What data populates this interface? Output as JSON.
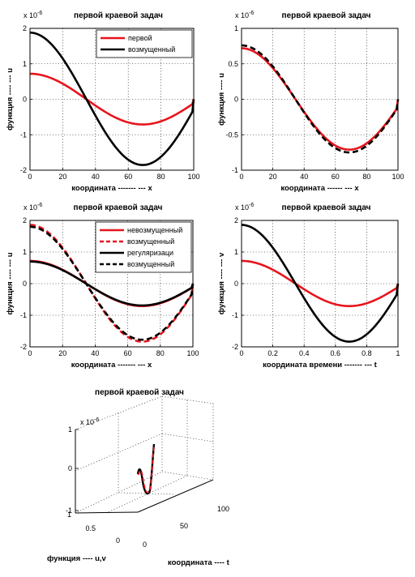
{
  "chart_data": [
    {
      "type": "line",
      "title": "первой краевой задач",
      "xlabel": "координата ------- --- x",
      "ylabel": "функция ---- --- u",
      "exponent": "x 10",
      "exponent_power": "-6",
      "xlim": [
        0,
        100
      ],
      "ylim": [
        -2,
        2
      ],
      "xticks": [
        "0",
        "20",
        "40",
        "60",
        "80",
        "100"
      ],
      "yticks": [
        "-2",
        "-1",
        "0",
        "1",
        "2"
      ],
      "grid": true,
      "legend_position": "top-right",
      "series": [
        {
          "name": "первой",
          "color": "#e8141c",
          "dash": "solid",
          "amplitude": 0.72
        },
        {
          "name": "возмущенный",
          "color": "#000000",
          "dash": "solid",
          "amplitude": 1.88
        }
      ]
    },
    {
      "type": "line",
      "title": "первой краевой задач",
      "xlabel": "координата ------ --- x",
      "ylabel": "функция ---- u",
      "exponent": "x 10",
      "exponent_power": "-6",
      "xlim": [
        0,
        100
      ],
      "ylim": [
        -1,
        1
      ],
      "xticks": [
        "0",
        "20",
        "40",
        "60",
        "80",
        "100"
      ],
      "yticks": [
        "-1",
        "-0.5",
        "0",
        "0.5",
        "1"
      ],
      "grid": true,
      "series": [
        {
          "color": "#e8141c",
          "dash": "solid",
          "amplitude": 0.72
        },
        {
          "color": "#000000",
          "dash": "dashed",
          "amplitude": 0.76
        }
      ]
    },
    {
      "type": "line",
      "title": "первой краевой задач",
      "xlabel": "координата ------- --- x",
      "ylabel": "функция ---- --- u",
      "exponent": "x 10",
      "exponent_power": "-6",
      "xlim": [
        0,
        100
      ],
      "ylim": [
        -2,
        2
      ],
      "xticks": [
        "0",
        "20",
        "40",
        "60",
        "80",
        "100"
      ],
      "yticks": [
        "-2",
        "-1",
        "0",
        "1",
        "2"
      ],
      "grid": true,
      "legend_position": "top-right",
      "series": [
        {
          "name": "невозмущенный",
          "color": "#e8141c",
          "dash": "solid",
          "amplitude": 0.72
        },
        {
          "name": "возмущенный",
          "color": "#e8141c",
          "dash": "dashed",
          "amplitude": 1.86
        },
        {
          "name": "регуляризаци",
          "color": "#000000",
          "dash": "solid",
          "amplitude": 0.7
        },
        {
          "name": "возмущенный",
          "color": "#000000",
          "dash": "dashed",
          "amplitude": 1.8
        }
      ]
    },
    {
      "type": "line",
      "title": "первой краевой задач",
      "xlabel": "координата времени ------- --- t",
      "ylabel": "функция ---- --- v",
      "exponent": "x 10",
      "exponent_power": "-6",
      "xlim": [
        0,
        1
      ],
      "ylim": [
        -2,
        2
      ],
      "xticks": [
        "0",
        "0.2",
        "0.4",
        "0.6",
        "0.8",
        "1"
      ],
      "yticks": [
        "-2",
        "-1",
        "0",
        "1",
        "2"
      ],
      "grid": true,
      "series": [
        {
          "color": "#e8141c",
          "dash": "solid",
          "amplitude": 0.72
        },
        {
          "color": "#000000",
          "dash": "solid",
          "amplitude": 1.86
        }
      ]
    },
    {
      "type": "line3d",
      "title": "первой краевой задач",
      "xlabel": "координата ---- t",
      "ylabel": "функция ---- u,v",
      "exponent": "x 10",
      "exponent_power": "-6",
      "zticks": [
        "-1",
        "0",
        "1"
      ],
      "x_axis_ticks": [
        "0",
        "50",
        "100"
      ],
      "y_axis_ticks": [
        "0",
        "0.5",
        "1"
      ],
      "grid": true
    }
  ]
}
